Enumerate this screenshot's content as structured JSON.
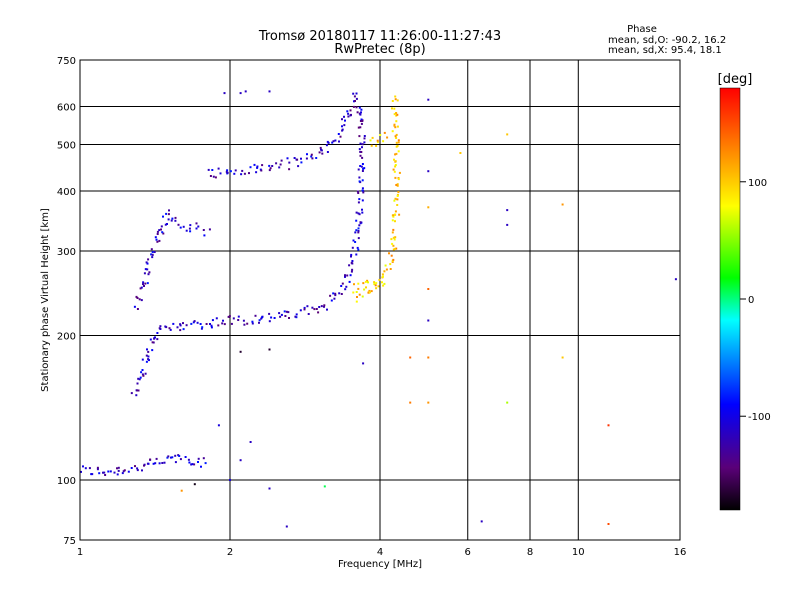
{
  "header": {
    "title_line1": "Tromsø 20180117 11:26:00-11:27:43",
    "title_line2": "RwPretec (8p)"
  },
  "phase_stats": {
    "label": "Phase",
    "o_line": "mean, sd,O: -90.2, 16.2",
    "x_line": "mean, sd,X:  95.4, 18.1"
  },
  "chart_data": {
    "type": "scatter",
    "xlabel": "Frequency [MHz]",
    "ylabel": "Stationary phase Virtual Height [km]",
    "x_scale": "log",
    "y_scale": "log",
    "xlim": [
      1,
      16
    ],
    "ylim": [
      75,
      750
    ],
    "x_ticks": [
      1,
      2,
      4,
      6,
      8,
      10,
      16
    ],
    "y_ticks": [
      75,
      100,
      200,
      300,
      400,
      500,
      600,
      750
    ],
    "grid": true,
    "colorbar": {
      "label": "[deg]",
      "range": [
        -180,
        180
      ],
      "ticks": [
        100,
        0,
        -100
      ],
      "colormap": [
        "#000000",
        "#5a0078",
        "#0000ff",
        "#00ffff",
        "#00ff00",
        "#ffff00",
        "#ff8000",
        "#ff0000"
      ]
    },
    "series": [
      {
        "phase": -100,
        "trace_points": [
          [
            1.0,
            105
          ],
          [
            1.1,
            104
          ],
          [
            1.2,
            105
          ],
          [
            1.3,
            106
          ],
          [
            1.4,
            108
          ],
          [
            1.5,
            110
          ],
          [
            1.6,
            112
          ],
          [
            1.7,
            110
          ],
          [
            1.8,
            108
          ],
          [
            1.28,
            150
          ],
          [
            1.32,
            165
          ],
          [
            1.36,
            180
          ],
          [
            1.4,
            195
          ],
          [
            1.45,
            205
          ],
          [
            1.5,
            208
          ],
          [
            1.6,
            210
          ],
          [
            1.8,
            212
          ],
          [
            2.0,
            215
          ],
          [
            2.3,
            217
          ],
          [
            2.6,
            220
          ],
          [
            2.9,
            225
          ],
          [
            3.1,
            232
          ],
          [
            3.3,
            245
          ],
          [
            3.45,
            265
          ],
          [
            3.55,
            295
          ],
          [
            3.62,
            340
          ],
          [
            3.66,
            400
          ],
          [
            3.68,
            460
          ],
          [
            3.68,
            520
          ],
          [
            3.66,
            570
          ],
          [
            3.64,
            620
          ],
          [
            1.8,
            435
          ],
          [
            2.0,
            438
          ],
          [
            2.3,
            445
          ],
          [
            2.6,
            455
          ],
          [
            2.9,
            470
          ],
          [
            3.1,
            490
          ],
          [
            3.3,
            520
          ],
          [
            3.45,
            570
          ],
          [
            3.55,
            640
          ],
          [
            1.3,
            230
          ],
          [
            1.35,
            260
          ],
          [
            1.4,
            300
          ],
          [
            1.45,
            325
          ],
          [
            1.5,
            360
          ],
          [
            1.6,
            340
          ],
          [
            1.8,
            330
          ]
        ]
      },
      {
        "phase": 100,
        "trace_points": [
          [
            3.5,
            250
          ],
          [
            3.8,
            255
          ],
          [
            4.0,
            262
          ],
          [
            4.15,
            275
          ],
          [
            4.25,
            300
          ],
          [
            4.3,
            350
          ],
          [
            4.32,
            420
          ],
          [
            4.32,
            500
          ],
          [
            4.3,
            560
          ],
          [
            4.28,
            630
          ],
          [
            3.6,
            240
          ],
          [
            3.75,
            248
          ],
          [
            3.9,
            252
          ],
          [
            4.05,
            258
          ],
          [
            3.8,
            500
          ],
          [
            4.0,
            515
          ],
          [
            4.1,
            530
          ]
        ]
      }
    ],
    "scattered_points": [
      [
        1.95,
        640,
        -100
      ],
      [
        2.1,
        640,
        -100
      ],
      [
        2.15,
        645,
        -100
      ],
      [
        2.4,
        645,
        -100
      ],
      [
        5.0,
        620,
        -100
      ],
      [
        5.0,
        440,
        -100
      ],
      [
        5.0,
        370,
        110
      ],
      [
        5.0,
        250,
        140
      ],
      [
        5.0,
        215,
        -100
      ],
      [
        5.0,
        180,
        130
      ],
      [
        5.0,
        145,
        120
      ],
      [
        4.6,
        145,
        130
      ],
      [
        3.7,
        175,
        -100
      ],
      [
        4.6,
        180,
        140
      ],
      [
        2.6,
        80,
        -100
      ],
      [
        2.4,
        187,
        -160
      ],
      [
        2.1,
        185,
        -160
      ],
      [
        3.1,
        97,
        10
      ],
      [
        5.8,
        480,
        100
      ],
      [
        7.2,
        525,
        100
      ],
      [
        7.2,
        365,
        -100
      ],
      [
        7.2,
        340,
        -100
      ],
      [
        7.2,
        145,
        60
      ],
      [
        6.4,
        82,
        -100
      ],
      [
        9.3,
        375,
        120
      ],
      [
        9.3,
        180,
        100
      ],
      [
        11.5,
        130,
        160
      ],
      [
        11.5,
        81,
        150
      ],
      [
        15.7,
        262,
        -100
      ],
      [
        2.0,
        100,
        -90
      ],
      [
        2.1,
        110,
        -100
      ],
      [
        2.2,
        120,
        -100
      ],
      [
        1.9,
        130,
        -90
      ],
      [
        2.4,
        96,
        -100
      ],
      [
        1.6,
        95,
        120
      ],
      [
        1.7,
        98,
        -170
      ]
    ]
  }
}
